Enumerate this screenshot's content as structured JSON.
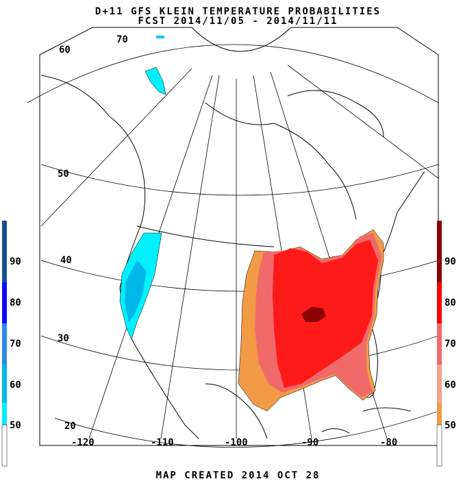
{
  "title_line1": "D+11 GFS KLEIN TEMPERATURE PROBABILITIES",
  "title_line2": "FCST 2014/11/05 - 2014/11/11",
  "footer": "MAP CREATED 2014 OCT 28",
  "latitude_labels": [
    "70",
    "60",
    "50",
    "40",
    "30",
    "20"
  ],
  "longitude_labels": [
    "-120",
    "-110",
    "-100",
    "-90",
    "-80"
  ],
  "below_normal_colorbar": {
    "labels": [
      "90",
      "80",
      "70",
      "60",
      "50"
    ],
    "colors": [
      "#1a4f8a",
      "#0a0aff",
      "#2a8be8",
      "#00b8e8",
      "#00f0ff"
    ]
  },
  "above_normal_colorbar": {
    "labels": [
      "90",
      "80",
      "70",
      "60",
      "50"
    ],
    "colors": [
      "#8b0000",
      "#ff0000",
      "#f06a6a",
      "#f2a082",
      "#f29a46"
    ]
  },
  "probability_regions": {
    "west_coast_below_normal": "#00c8f0",
    "alaska_below_normal": "#00f0ff",
    "east_above_normal_outer": "#f29a46",
    "east_above_normal_mid": "#f06a6a",
    "east_above_normal_inner": "#ff1a1a",
    "east_above_normal_core": "#8b0000"
  }
}
